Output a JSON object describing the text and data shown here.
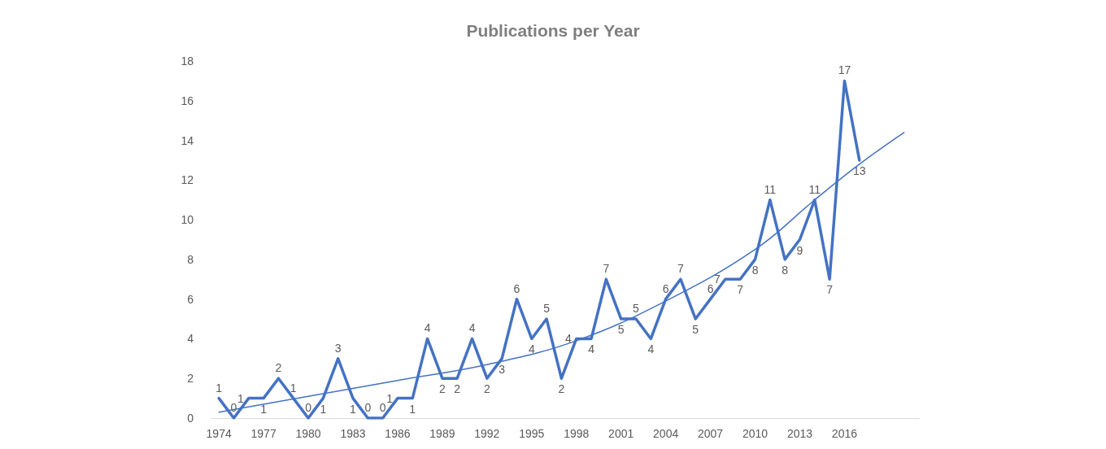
{
  "chart_data": {
    "type": "line",
    "title": "Publications per Year",
    "x": [
      1974,
      1975,
      1976,
      1977,
      1978,
      1979,
      1980,
      1981,
      1982,
      1983,
      1984,
      1985,
      1986,
      1987,
      1988,
      1989,
      1990,
      1991,
      1992,
      1993,
      1994,
      1995,
      1996,
      1997,
      1998,
      1999,
      2000,
      2001,
      2002,
      2003,
      2004,
      2005,
      2006,
      2007,
      2008,
      2009,
      2010,
      2011,
      2012,
      2013,
      2014,
      2015,
      2016,
      2017
    ],
    "series": [
      {
        "color": "#4472c4",
        "values": [
          1,
          0,
          1,
          1,
          2,
          1,
          0,
          1,
          3,
          1,
          0,
          0,
          1,
          1,
          4,
          2,
          2,
          4,
          2,
          3,
          6,
          4,
          5,
          2,
          4,
          4,
          7,
          5,
          5,
          4,
          6,
          7,
          5,
          6,
          7,
          7,
          8,
          11,
          8,
          9,
          11,
          7,
          17,
          13
        ],
        "data_labels": true
      },
      {
        "type": "line",
        "color": "#4472c4",
        "x": [
          1974,
          1980,
          1986,
          1992,
          1998,
          2004,
          2010,
          2014,
          2017,
          2020
        ],
        "values": [
          0.3,
          1.1,
          1.9,
          2.7,
          3.9,
          5.9,
          8.5,
          11,
          12.8,
          14.4
        ],
        "line_style": "solid"
      }
    ],
    "xlim": [
      1973.5,
      2021
    ],
    "xticks": [
      1974,
      1977,
      1980,
      1983,
      1986,
      1989,
      1992,
      1995,
      1998,
      2001,
      2004,
      2007,
      2010,
      2013,
      2016
    ],
    "ylim": [
      0,
      18
    ],
    "yticks": [
      0,
      2,
      4,
      6,
      8,
      10,
      12,
      14,
      16,
      18
    ],
    "grid": false,
    "marker": "none"
  }
}
